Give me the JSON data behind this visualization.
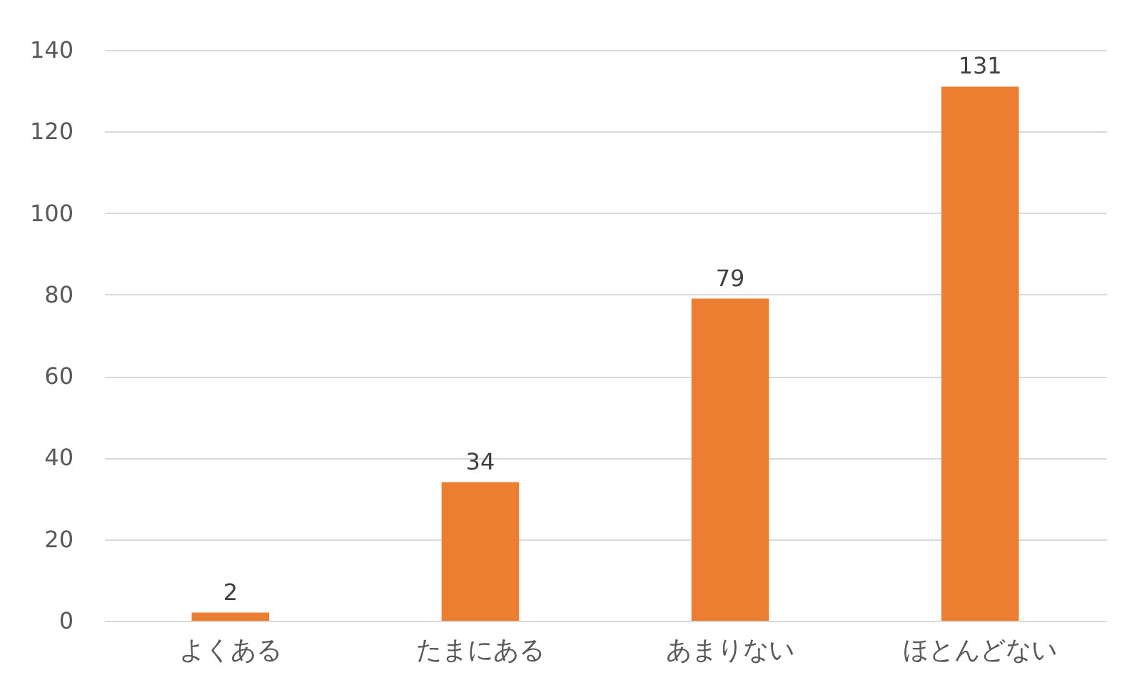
{
  "chart_data": {
    "type": "bar",
    "categories": [
      "よくある",
      "たまにある",
      "あまりない",
      "ほとんどない"
    ],
    "values": [
      2,
      34,
      79,
      131
    ],
    "color": "#ed7d31",
    "ylim": [
      0,
      140
    ],
    "yticks": [
      0,
      20,
      40,
      60,
      80,
      100,
      120,
      140
    ],
    "grid": "y",
    "data_labels": true
  }
}
